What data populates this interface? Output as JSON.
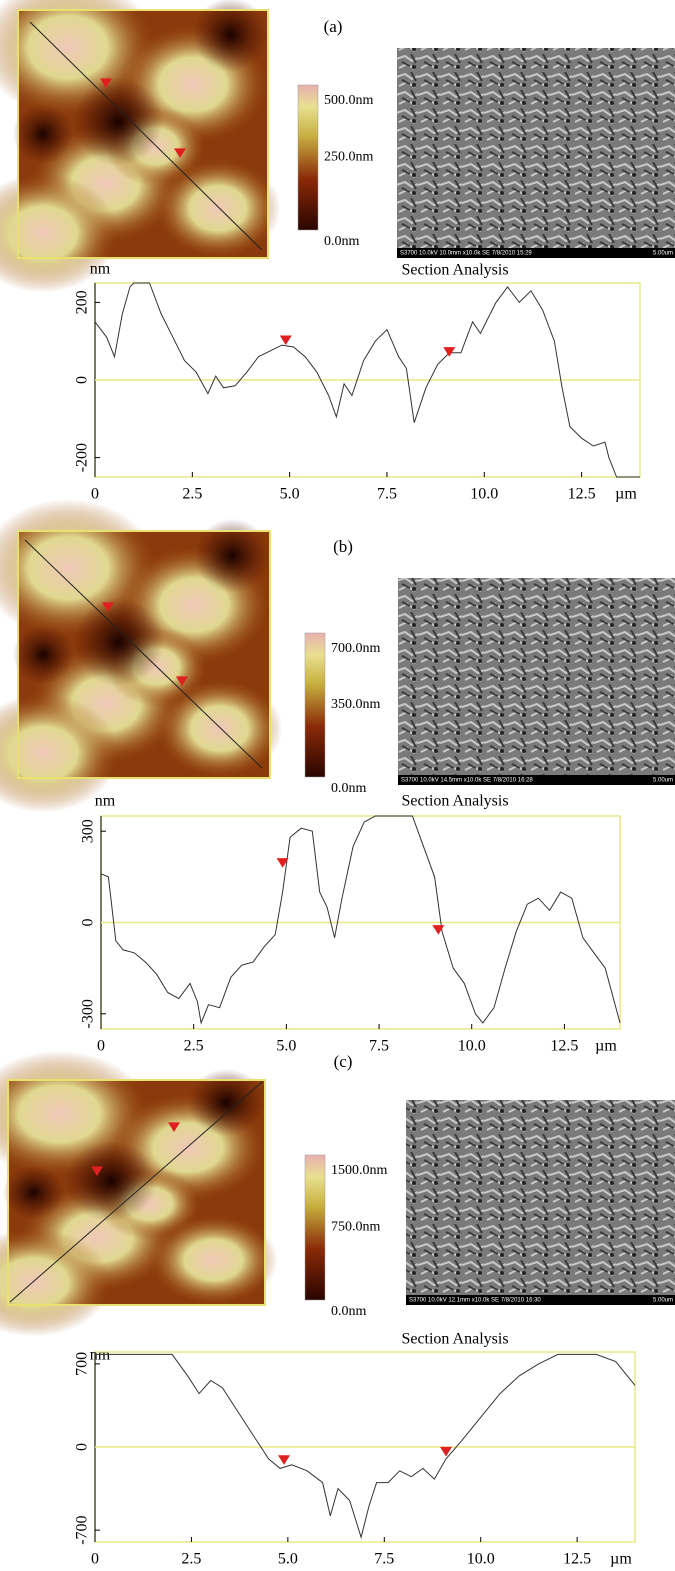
{
  "panels": [
    {
      "label": "(a)",
      "colorbar": [
        "500.0nm",
        "250.0nm",
        "0.0nm"
      ],
      "sem_caption": "S3700 10.0kV 10.0mm x10.0k SE 7/8/2010 15:29",
      "sem_scale": "5.00um"
    },
    {
      "label": "(b)",
      "colorbar": [
        "700.0nm",
        "350.0nm",
        "0.0nm"
      ],
      "sem_caption": "S3700 10.0kV 14.5mm x10.0k SE 7/8/2010 16:28",
      "sem_scale": "5.00um"
    },
    {
      "label": "(c)",
      "colorbar": [
        "1500.0nm",
        "750.0nm",
        "0.0nm"
      ],
      "sem_caption": "S3700 10.0kV 12.1mm x10.0k SE 7/8/2010 16:30",
      "sem_scale": "5.00um"
    }
  ],
  "chart_data": [
    {
      "type": "line",
      "title": "Section Analysis",
      "y_label": "nm",
      "x_unit": "µm",
      "x": [
        0,
        0.3,
        0.5,
        0.7,
        0.9,
        1.0,
        1.4,
        1.7,
        2.0,
        2.3,
        2.6,
        2.9,
        3.1,
        3.3,
        3.6,
        3.9,
        4.2,
        4.5,
        4.8,
        5.1,
        5.4,
        5.7,
        6.0,
        6.2,
        6.4,
        6.6,
        6.9,
        7.2,
        7.5,
        7.8,
        8.0,
        8.2,
        8.5,
        8.8,
        9.1,
        9.4,
        9.7,
        9.9,
        10.3,
        10.6,
        10.9,
        11.2,
        11.5,
        11.8,
        12.0,
        12.2,
        12.5,
        12.8,
        13.1,
        13.2,
        13.4,
        14.0
      ],
      "series": [
        {
          "color": "#333333",
          "values": [
            150,
            110,
            60,
            170,
            240,
            250,
            250,
            170,
            110,
            50,
            20,
            -35,
            10,
            -20,
            -15,
            20,
            60,
            75,
            90,
            85,
            60,
            20,
            -40,
            -95,
            -10,
            -40,
            50,
            100,
            130,
            60,
            30,
            -110,
            -20,
            40,
            70,
            70,
            150,
            120,
            200,
            240,
            200,
            230,
            180,
            100,
            -20,
            -120,
            -150,
            -170,
            -160,
            -200,
            -250,
            -250
          ]
        }
      ],
      "markers": {
        "x": [
          4.9,
          9.1
        ],
        "y": [
          90,
          60
        ],
        "color": "#e02020"
      },
      "xlim": [
        0,
        14
      ],
      "xticks": [
        0,
        2.5,
        {
          "value": 5,
          "label": "5.0"
        },
        7.5,
        {
          "value": 10,
          "label": "10.0"
        },
        12.5
      ],
      "ylim": [
        -250,
        250
      ],
      "yticks": [
        -200,
        0,
        200
      ]
    },
    {
      "type": "line",
      "title": "Section Analysis",
      "y_label": "nm",
      "x_unit": "µm",
      "x": [
        0,
        0.2,
        0.4,
        0.6,
        0.9,
        1.2,
        1.5,
        1.8,
        2.1,
        2.4,
        2.6,
        2.7,
        2.9,
        3.2,
        3.5,
        3.8,
        4.1,
        4.4,
        4.7,
        4.9,
        5.1,
        5.4,
        5.7,
        5.9,
        6.1,
        6.3,
        6.5,
        6.8,
        7.1,
        7.4,
        8.4,
        8.7,
        9.0,
        9.2,
        9.5,
        9.8,
        10.1,
        10.3,
        10.6,
        10.9,
        11.2,
        11.5,
        11.8,
        12.1,
        12.4,
        12.7,
        13.0,
        13.3,
        13.6,
        14.0
      ],
      "series": [
        {
          "color": "#333333",
          "values": [
            160,
            150,
            -60,
            -90,
            -100,
            -130,
            -170,
            -230,
            -250,
            -200,
            -260,
            -330,
            -270,
            -280,
            -180,
            -140,
            -130,
            -80,
            -40,
            100,
            280,
            310,
            300,
            100,
            50,
            -50,
            80,
            250,
            330,
            350,
            350,
            250,
            150,
            -30,
            -150,
            -200,
            -300,
            -330,
            -280,
            -150,
            -30,
            60,
            80,
            40,
            100,
            80,
            -50,
            -100,
            -150,
            -330
          ]
        }
      ],
      "markers": {
        "x": [
          4.9,
          9.1
        ],
        "y": [
          180,
          -40
        ],
        "color": "#e02020"
      },
      "xlim": [
        0,
        14
      ],
      "xticks": [
        0,
        2.5,
        {
          "value": 5,
          "label": "5.0"
        },
        7.5,
        {
          "value": 10,
          "label": "10.0"
        },
        12.5
      ],
      "ylim": [
        -350,
        350
      ],
      "yticks": [
        -300,
        0,
        300
      ]
    },
    {
      "type": "line",
      "title": "Section Analysis",
      "y_label": "nm",
      "x_unit": "µm",
      "x": [
        0,
        2.0,
        2.4,
        2.7,
        3.0,
        3.3,
        3.7,
        4.1,
        4.5,
        4.8,
        5.1,
        5.5,
        5.9,
        6.1,
        6.3,
        6.6,
        6.9,
        7.1,
        7.3,
        7.6,
        7.9,
        8.2,
        8.5,
        8.8,
        9.1,
        9.5,
        10.0,
        10.5,
        11.0,
        11.5,
        12.0,
        13.0,
        13.5,
        14.0
      ],
      "series": [
        {
          "color": "#333333",
          "values": [
            780,
            780,
            600,
            450,
            560,
            500,
            300,
            100,
            -100,
            -180,
            -150,
            -200,
            -300,
            -580,
            -350,
            -450,
            -760,
            -500,
            -300,
            -300,
            -200,
            -250,
            -180,
            -270,
            -100,
            50,
            250,
            450,
            600,
            700,
            780,
            780,
            720,
            520
          ]
        }
      ],
      "markers": {
        "x": [
          4.9,
          9.1
        ],
        "y": [
          -150,
          -80
        ],
        "color": "#e02020"
      },
      "xlim": [
        0,
        14
      ],
      "xticks": [
        0,
        2.5,
        {
          "value": 5,
          "label": "5.0"
        },
        7.5,
        {
          "value": 10,
          "label": "10.0"
        },
        12.5
      ],
      "ylim": [
        -800,
        800
      ],
      "yticks": [
        -700,
        0,
        700
      ]
    }
  ]
}
